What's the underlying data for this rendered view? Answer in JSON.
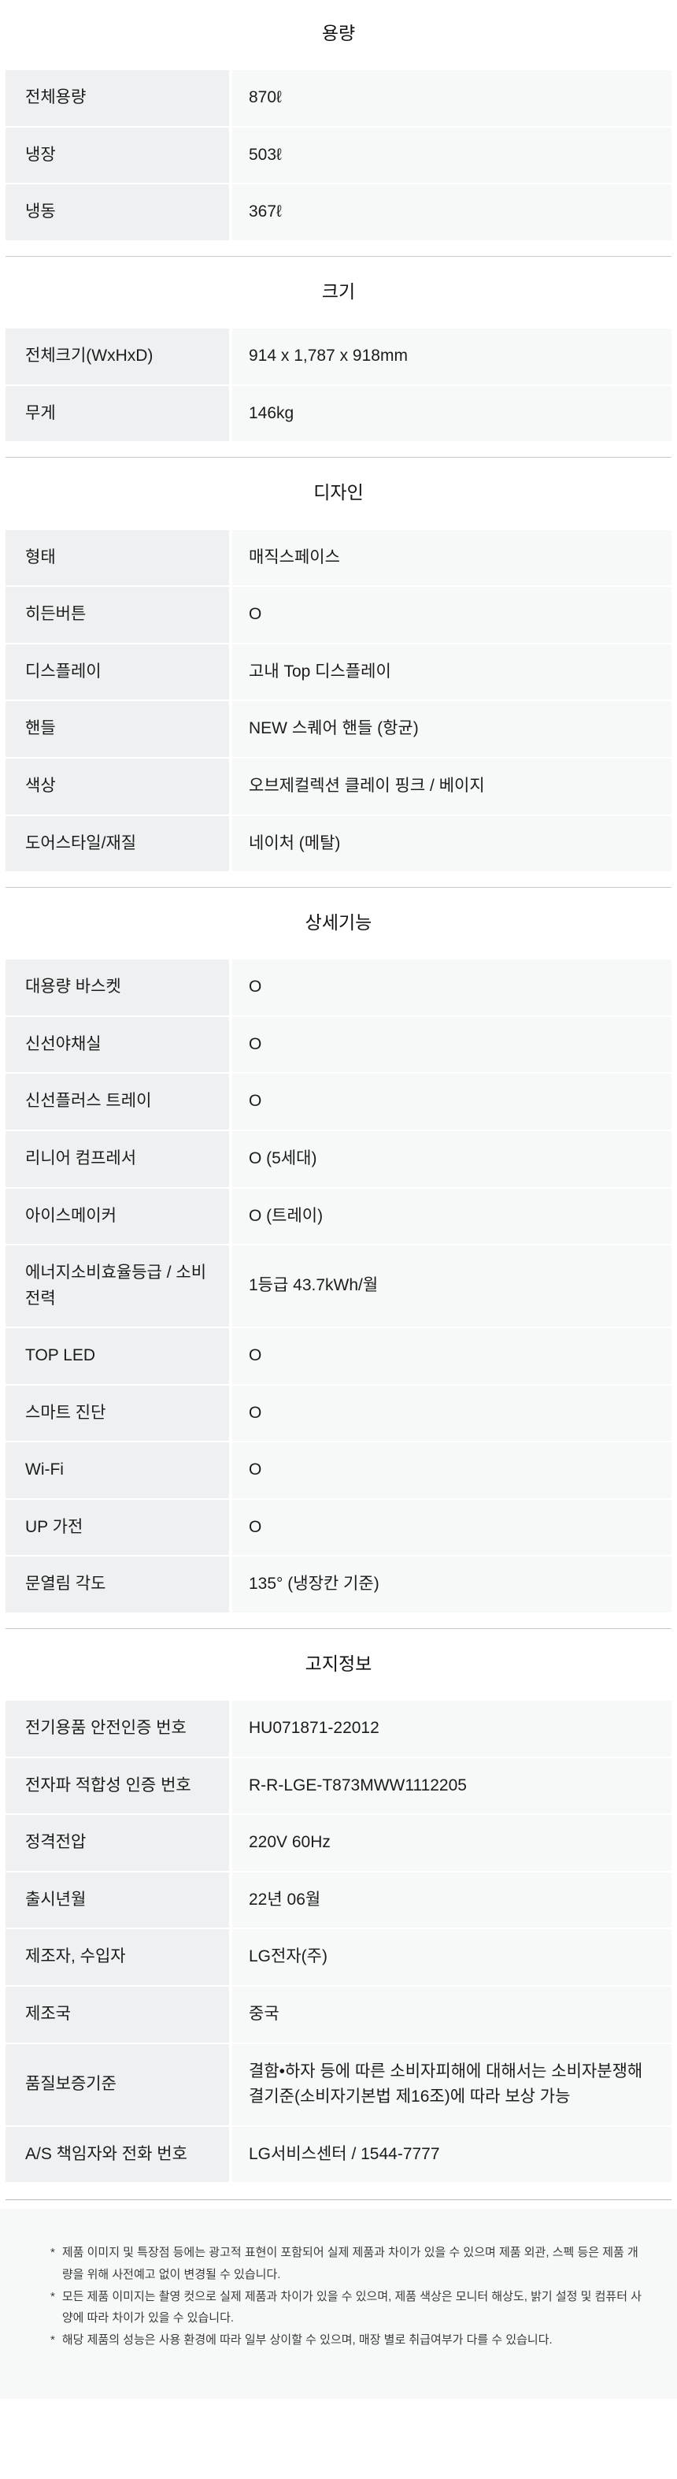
{
  "sections": [
    {
      "title": "용량",
      "rows": [
        {
          "label": "전체용량",
          "value": "870ℓ"
        },
        {
          "label": "냉장",
          "value": "503ℓ"
        },
        {
          "label": "냉동",
          "value": "367ℓ"
        }
      ]
    },
    {
      "title": "크기",
      "rows": [
        {
          "label": "전체크기(WxHxD)",
          "value": "914 x 1,787 x 918mm"
        },
        {
          "label": "무게",
          "value": "146kg"
        }
      ]
    },
    {
      "title": "디자인",
      "rows": [
        {
          "label": "형태",
          "value": "매직스페이스"
        },
        {
          "label": "히든버튼",
          "value": "O"
        },
        {
          "label": "디스플레이",
          "value": "고내 Top 디스플레이"
        },
        {
          "label": "핸들",
          "value": "NEW 스퀘어 핸들 (항균)"
        },
        {
          "label": "색상",
          "value": "오브제컬렉션 클레이 핑크 / 베이지"
        },
        {
          "label": "도어스타일/재질",
          "value": "네이처 (메탈)"
        }
      ]
    },
    {
      "title": "상세기능",
      "rows": [
        {
          "label": "대용량 바스켓",
          "value": "O"
        },
        {
          "label": "신선야채실",
          "value": "O"
        },
        {
          "label": "신선플러스 트레이",
          "value": "O"
        },
        {
          "label": "리니어 컴프레서",
          "value": "O (5세대)"
        },
        {
          "label": "아이스메이커",
          "value": "O (트레이)"
        },
        {
          "label": "에너지소비효율등급 / 소비전력",
          "value": "1등급 43.7kWh/월"
        },
        {
          "label": "TOP LED",
          "value": "O"
        },
        {
          "label": "스마트 진단",
          "value": "O"
        },
        {
          "label": "Wi-Fi",
          "value": "O"
        },
        {
          "label": "UP 가전",
          "value": "O"
        },
        {
          "label": "문열림 각도",
          "value": "135° (냉장칸 기준)"
        }
      ]
    },
    {
      "title": "고지정보",
      "rows": [
        {
          "label": "전기용품 안전인증 번호",
          "value": "HU071871-22012"
        },
        {
          "label": "전자파 적합성 인증 번호",
          "value": "R-R-LGE-T873MWW1112205"
        },
        {
          "label": "정격전압",
          "value": "220V 60Hz"
        },
        {
          "label": "출시년월",
          "value": "22년 06월"
        },
        {
          "label": "제조자, 수입자",
          "value": "LG전자(주)"
        },
        {
          "label": "제조국",
          "value": "중국"
        },
        {
          "label": "품질보증기준",
          "value": "결함•하자 등에 따른 소비자피해에 대해서는 소비자분쟁해결기준(소비자기본법 제16조)에 따라 보상 가능"
        },
        {
          "label": "A/S 책임자와 전화 번호",
          "value": "LG서비스센터 / 1544-7777"
        }
      ]
    }
  ],
  "footnotes": {
    "bullet": "*",
    "items": [
      "제품 이미지 및 특장점 등에는 광고적 표현이 포함되어 실제 제품과 차이가 있을 수 있으며 제품 외관, 스펙 등은 제품 개량을 위해 사전예고 없이 변경될 수 있습니다.",
      "모든 제품 이미지는 촬영 컷으로 실제 제품과 차이가 있을 수 있으며, 제품 색상은 모니터 해상도, 밝기 설정 및 컴퓨터 사양에 따라 차이가 있을 수 있습니다.",
      "해당 제품의 성능은 사용 환경에 따라 일부 상이할 수 있으며, 매장 별로 취급여부가 다를 수 있습니다."
    ]
  },
  "colors": {
    "label_cell_bg": "#eef0f1",
    "value_cell_bg": "#f7f8f8",
    "footer_bg": "#f7f8f8",
    "divider": "#c9c9c9",
    "text": "#1b1b1b",
    "footnote_text": "#3a3a3a"
  }
}
